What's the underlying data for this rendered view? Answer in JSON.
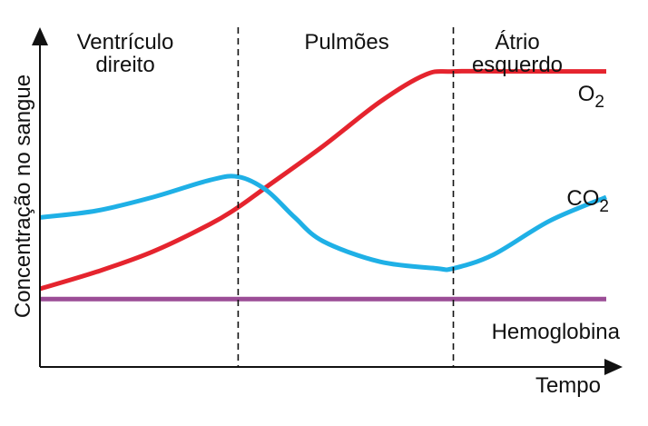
{
  "chart_data": {
    "type": "line",
    "title": "",
    "xlabel": "Tempo",
    "ylabel": "Concentração no sangue",
    "grid": false,
    "legend": "inline labels at right end of lines",
    "regions": [
      {
        "label_lines": [
          "Ventrículo",
          "direito"
        ]
      },
      {
        "label_lines": [
          "Pulmões"
        ]
      },
      {
        "label_lines": [
          "Átrio",
          "esquerdo"
        ]
      }
    ],
    "boundaries": [
      0.35,
      0.73
    ],
    "xlim": [
      0,
      1
    ],
    "ylim": [
      0,
      1
    ],
    "series": [
      {
        "name": "O2",
        "display_base": "O",
        "display_sub": "2",
        "color": "#e5242e",
        "x": [
          0,
          0.1,
          0.2,
          0.3,
          0.35,
          0.4,
          0.5,
          0.6,
          0.68,
          0.73,
          0.85,
          1.0
        ],
        "y": [
          0.23,
          0.28,
          0.34,
          0.42,
          0.47,
          0.53,
          0.65,
          0.78,
          0.86,
          0.87,
          0.87,
          0.87
        ]
      },
      {
        "name": "CO2",
        "display_base": "CO",
        "display_sub": "2",
        "color": "#1fb0e6",
        "x": [
          0,
          0.1,
          0.2,
          0.3,
          0.35,
          0.4,
          0.45,
          0.5,
          0.6,
          0.7,
          0.73,
          0.8,
          0.9,
          1.0
        ],
        "y": [
          0.44,
          0.46,
          0.5,
          0.55,
          0.56,
          0.52,
          0.44,
          0.37,
          0.31,
          0.29,
          0.29,
          0.33,
          0.43,
          0.5
        ]
      },
      {
        "name": "Hemoglobina",
        "display_base": "Hemoglobina",
        "display_sub": "",
        "color": "#9b4d96",
        "x": [
          0,
          1.0
        ],
        "y": [
          0.2,
          0.2
        ]
      }
    ]
  }
}
